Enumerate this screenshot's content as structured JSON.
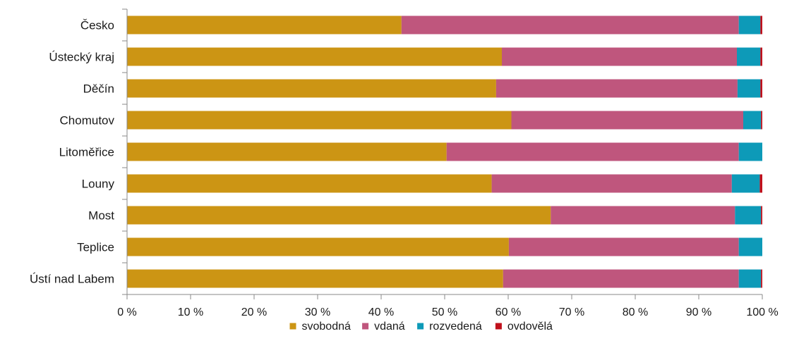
{
  "chart_data": {
    "type": "bar",
    "orientation": "horizontal",
    "stacked": true,
    "categories": [
      "Česko",
      "Ústecký kraj",
      "Děčín",
      "Chomutov",
      "Litoměřice",
      "Louny",
      "Most",
      "Teplice",
      "Ústí nad Labem"
    ],
    "series": [
      {
        "name": "svobodná",
        "color": "#cc9514",
        "values": [
          43.2,
          59.0,
          58.1,
          60.5,
          50.3,
          57.4,
          66.7,
          60.1,
          59.2
        ]
      },
      {
        "name": "vdaná",
        "color": "#bf567d",
        "values": [
          53.1,
          37.0,
          38.0,
          36.5,
          46.0,
          37.8,
          29.0,
          36.2,
          37.1
        ]
      },
      {
        "name": "rozvedená",
        "color": "#0d9ab8",
        "values": [
          3.4,
          3.7,
          3.6,
          2.8,
          3.7,
          4.4,
          4.1,
          3.7,
          3.5
        ]
      },
      {
        "name": "ovdovělá",
        "color": "#c0101c",
        "values": [
          0.3,
          0.3,
          0.3,
          0.2,
          0.0,
          0.4,
          0.2,
          0.0,
          0.2
        ]
      }
    ],
    "xlim": [
      0,
      100
    ],
    "x_ticks": [
      "0 %",
      "10 %",
      "20 %",
      "30 %",
      "40 %",
      "50 %",
      "60 %",
      "70 %",
      "80 %",
      "90 %",
      "100 %"
    ],
    "grid": false,
    "legend_position": "bottom"
  }
}
